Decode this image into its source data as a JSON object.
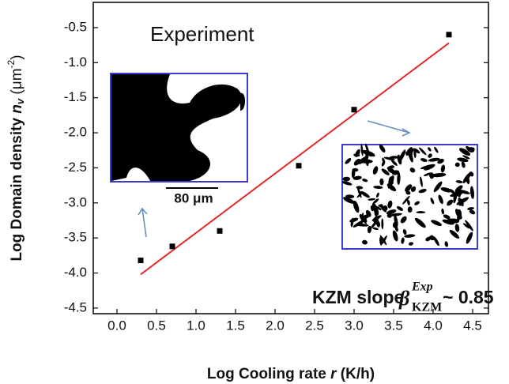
{
  "chart_data": {
    "type": "scatter",
    "title": "Experiment",
    "xlabel": [
      "Log Cooling rate ",
      "r",
      " (K/h)"
    ],
    "ylabel": [
      "Log Domain density ",
      "n",
      "v",
      " (μm",
      "-2",
      ")"
    ],
    "x": [
      0.3,
      0.7,
      1.3,
      2.3,
      3.0,
      4.2
    ],
    "values": [
      -3.82,
      -3.62,
      -3.4,
      -2.47,
      -1.67,
      -0.6
    ],
    "color": "#000000",
    "fit": {
      "x": [
        0.3,
        4.2
      ],
      "values": [
        -4.02,
        -0.72
      ],
      "color": "#e02a2a"
    },
    "xlim": [
      -0.3,
      4.7
    ],
    "ylim": [
      -4.58,
      -0.14
    ],
    "xticks": [
      {
        "value": 0,
        "label": "0.0"
      },
      0.5,
      {
        "value": 1,
        "label": "1.0"
      },
      1.5,
      {
        "value": 2,
        "label": "2.0"
      },
      2.5,
      {
        "value": 3,
        "label": "3.0"
      },
      3.5,
      {
        "value": 4,
        "label": "4.0"
      },
      4.5
    ],
    "yticks": [
      -0.5,
      {
        "value": -1,
        "label": "-1.0"
      },
      -1.5,
      {
        "value": -2,
        "label": "-2.0"
      },
      -2.5,
      {
        "value": -3,
        "label": "-3.0"
      },
      -3.5,
      {
        "value": -4,
        "label": "-4.0"
      },
      -4.5
    ],
    "annotations": {
      "scale_bar": "80 μm",
      "slope": [
        "KZM slope ",
        "β",
        "Exp",
        "KZM",
        " ~ 0.85"
      ]
    }
  }
}
